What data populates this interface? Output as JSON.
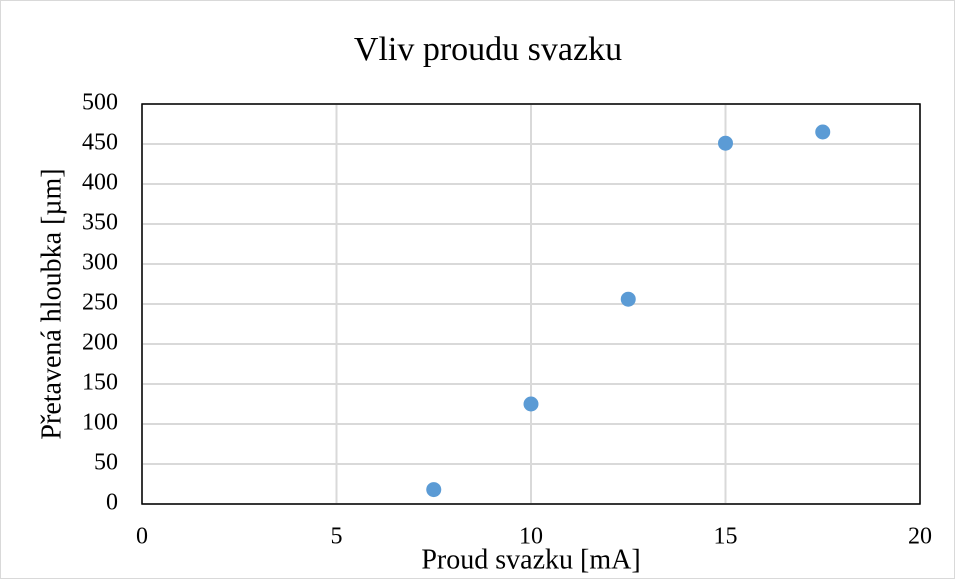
{
  "chart_data": {
    "type": "scatter",
    "title": "Vliv proudu svazku",
    "x_label": "Proud svazku [mA]",
    "y_label": "Přetavená hloubka [µm]",
    "x": [
      7.5,
      10,
      12.5,
      15,
      17.5
    ],
    "values": [
      18,
      125,
      256,
      451,
      465
    ],
    "color": "#5b9bd5",
    "xlim": [
      0,
      20
    ],
    "xticks": [
      0,
      5,
      10,
      15,
      20
    ],
    "ylim": [
      0,
      500
    ],
    "yticks": [
      0,
      50,
      100,
      150,
      200,
      250,
      300,
      350,
      400,
      450,
      500
    ],
    "grid": true
  }
}
